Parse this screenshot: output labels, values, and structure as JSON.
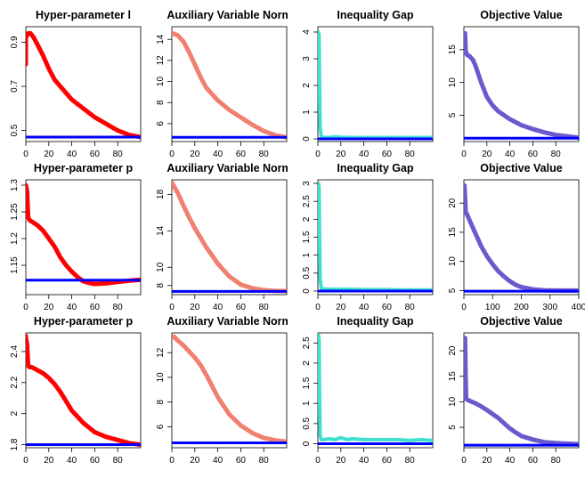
{
  "figure": {
    "background": "#ffffff",
    "title_clip_width": 131
  },
  "chart_data": [
    {
      "type": "line",
      "title": "Hyper-parameter l",
      "xlim": [
        0,
        100
      ],
      "ylim": [
        0.45,
        0.97
      ],
      "xticks": [
        0,
        20,
        40,
        60,
        80
      ],
      "yticks": [
        0.5,
        0.7,
        0.9
      ],
      "series": [
        {
          "color": "#ff0000",
          "width": 5,
          "x": [
            0,
            0,
            2,
            4,
            7,
            10,
            15,
            20,
            25,
            30,
            40,
            50,
            60,
            70,
            80,
            90,
            100
          ],
          "y": [
            0.8,
            0.92,
            0.94,
            0.94,
            0.92,
            0.89,
            0.84,
            0.78,
            0.73,
            0.7,
            0.64,
            0.6,
            0.56,
            0.53,
            0.5,
            0.48,
            0.47
          ]
        },
        {
          "color": "#0000ff",
          "width": 3,
          "x": [
            0,
            100
          ],
          "y": [
            0.47,
            0.47
          ]
        }
      ]
    },
    {
      "type": "line",
      "title": "Auxiliary Variable Norm",
      "xlim": [
        0,
        100
      ],
      "ylim": [
        4.3,
        15.2
      ],
      "xticks": [
        0,
        20,
        40,
        60,
        80
      ],
      "yticks": [
        6,
        8,
        10,
        12,
        14
      ],
      "series": [
        {
          "color": "#f08070",
          "width": 5,
          "x": [
            0,
            5,
            10,
            15,
            20,
            25,
            30,
            40,
            50,
            60,
            70,
            80,
            90,
            100
          ],
          "y": [
            14.6,
            14.4,
            13.8,
            12.8,
            11.6,
            10.4,
            9.4,
            8.2,
            7.3,
            6.6,
            5.9,
            5.3,
            4.9,
            4.7
          ]
        },
        {
          "color": "#0000ff",
          "width": 3,
          "x": [
            0,
            100
          ],
          "y": [
            4.7,
            4.7
          ]
        }
      ]
    },
    {
      "type": "line",
      "title": "Inequality Gap",
      "xlim": [
        0,
        100
      ],
      "ylim": [
        -0.1,
        4.2
      ],
      "xticks": [
        0,
        20,
        40,
        60,
        80
      ],
      "yticks": [
        0,
        1,
        2,
        3,
        4
      ],
      "series": [
        {
          "color": "#40e0d0",
          "width": 4,
          "x": [
            0,
            0.5,
            1,
            1.5,
            2,
            3,
            5,
            10,
            15,
            20,
            30,
            40,
            50,
            60,
            70,
            80,
            90,
            100
          ],
          "y": [
            4.0,
            4.0,
            3.9,
            2.0,
            0.4,
            0.08,
            0.05,
            0.05,
            0.08,
            0.06,
            0.05,
            0.05,
            0.05,
            0.05,
            0.05,
            0.05,
            0.05,
            0.05
          ]
        },
        {
          "color": "#0000ff",
          "width": 3,
          "x": [
            0,
            100
          ],
          "y": [
            0,
            0
          ]
        }
      ]
    },
    {
      "type": "line",
      "title": "Objective Value",
      "xlim": [
        0,
        100
      ],
      "ylim": [
        1,
        18.5
      ],
      "xticks": [
        0,
        20,
        40,
        60,
        80
      ],
      "yticks": [
        5,
        10,
        15
      ],
      "series": [
        {
          "color": "#6a5acd",
          "width": 5,
          "x": [
            0,
            0.5,
            1,
            1.5,
            2,
            3,
            5,
            8,
            10,
            15,
            20,
            25,
            30,
            40,
            50,
            60,
            70,
            80,
            90,
            100
          ],
          "y": [
            14.5,
            17.5,
            17.5,
            15,
            14.4,
            14.2,
            14.0,
            13.4,
            12.6,
            10.0,
            7.8,
            6.5,
            5.6,
            4.4,
            3.5,
            2.9,
            2.4,
            2.0,
            1.8,
            1.6
          ]
        },
        {
          "color": "#0000ff",
          "width": 3,
          "x": [
            0,
            100
          ],
          "y": [
            1.5,
            1.5
          ]
        }
      ]
    },
    {
      "type": "line",
      "title": "Hyper-parameter p",
      "xlim": [
        0,
        100
      ],
      "ylim": [
        1.095,
        1.31
      ],
      "xticks": [
        0,
        20,
        40,
        60,
        80
      ],
      "yticks": [
        1.15,
        1.2,
        1.25,
        1.3
      ],
      "series": [
        {
          "color": "#ff0000",
          "width": 5,
          "x": [
            0,
            0,
            1,
            2,
            3,
            5,
            10,
            15,
            20,
            25,
            30,
            35,
            40,
            45,
            50,
            55,
            60,
            70,
            80,
            90,
            100
          ],
          "y": [
            1.3,
            1.3,
            1.29,
            1.24,
            1.235,
            1.232,
            1.225,
            1.215,
            1.2,
            1.185,
            1.165,
            1.15,
            1.138,
            1.128,
            1.12,
            1.117,
            1.115,
            1.116,
            1.119,
            1.121,
            1.123
          ]
        },
        {
          "color": "#0000ff",
          "width": 3,
          "x": [
            0,
            100
          ],
          "y": [
            1.122,
            1.122
          ]
        }
      ]
    },
    {
      "type": "line",
      "title": "Auxiliary Variable Norm",
      "xlim": [
        0,
        100
      ],
      "ylim": [
        7,
        19.6
      ],
      "xticks": [
        0,
        20,
        40,
        60,
        80
      ],
      "yticks": [
        8,
        10,
        14,
        18
      ],
      "series": [
        {
          "color": "#f08070",
          "width": 5,
          "x": [
            0,
            5,
            10,
            15,
            20,
            30,
            40,
            50,
            60,
            70,
            80,
            90,
            100
          ],
          "y": [
            19.3,
            18.2,
            16.8,
            15.5,
            14.3,
            12.2,
            10.4,
            9.0,
            8.1,
            7.7,
            7.5,
            7.4,
            7.4
          ]
        },
        {
          "color": "#0000ff",
          "width": 3,
          "x": [
            0,
            100
          ],
          "y": [
            7.35,
            7.35
          ]
        }
      ]
    },
    {
      "type": "line",
      "title": "Inequality Gap",
      "xlim": [
        0,
        100
      ],
      "ylim": [
        -0.1,
        3.1
      ],
      "xticks": [
        0,
        20,
        40,
        60,
        80
      ],
      "yticks": [
        0,
        0.5,
        1,
        1.5,
        2,
        2.5,
        3
      ],
      "series": [
        {
          "color": "#40e0d0",
          "width": 4,
          "x": [
            0,
            0.5,
            1,
            1.5,
            2,
            3,
            5,
            10,
            20,
            30,
            40,
            50,
            60,
            70,
            80,
            90,
            100
          ],
          "y": [
            3.0,
            3.0,
            2.9,
            1.5,
            0.3,
            0.08,
            0.06,
            0.05,
            0.05,
            0.05,
            0.04,
            0.04,
            0.04,
            0.03,
            0.03,
            0.03,
            0.03
          ]
        },
        {
          "color": "#0000ff",
          "width": 3,
          "x": [
            0,
            100
          ],
          "y": [
            0,
            0
          ]
        }
      ]
    },
    {
      "type": "line",
      "title": "Objective Value",
      "xlim": [
        0,
        400
      ],
      "ylim": [
        4.3,
        24
      ],
      "xticks": [
        0,
        100,
        200,
        300,
        400
      ],
      "yticks": [
        5,
        10,
        15,
        20
      ],
      "series": [
        {
          "color": "#6a5acd",
          "width": 5,
          "x": [
            0,
            2,
            4,
            6,
            10,
            20,
            40,
            60,
            80,
            100,
            120,
            140,
            160,
            180,
            200,
            240,
            280,
            320,
            360,
            400
          ],
          "y": [
            20,
            23,
            21,
            18.5,
            18.2,
            17,
            14.8,
            12.6,
            10.9,
            9.5,
            8.3,
            7.4,
            6.6,
            6.0,
            5.6,
            5.2,
            5.05,
            5.0,
            5.0,
            5.0
          ]
        },
        {
          "color": "#0000ff",
          "width": 3,
          "x": [
            0,
            400
          ],
          "y": [
            4.9,
            4.9
          ]
        }
      ]
    },
    {
      "type": "line",
      "title": "Hyper-parameter p",
      "xlim": [
        0,
        100
      ],
      "ylim": [
        1.78,
        2.52
      ],
      "xticks": [
        0,
        20,
        40,
        60,
        80
      ],
      "yticks": [
        1.8,
        2,
        2.2,
        2.4
      ],
      "series": [
        {
          "color": "#ff0000",
          "width": 5,
          "x": [
            0,
            0,
            1,
            2,
            3,
            5,
            10,
            15,
            20,
            25,
            30,
            35,
            40,
            45,
            50,
            55,
            60,
            70,
            80,
            90,
            100
          ],
          "y": [
            2.5,
            2.49,
            2.45,
            2.31,
            2.3,
            2.3,
            2.28,
            2.26,
            2.23,
            2.19,
            2.14,
            2.08,
            2.02,
            1.98,
            1.94,
            1.91,
            1.88,
            1.85,
            1.83,
            1.81,
            1.8
          ]
        },
        {
          "color": "#0000ff",
          "width": 3,
          "x": [
            0,
            100
          ],
          "y": [
            1.8,
            1.8
          ]
        }
      ]
    },
    {
      "type": "line",
      "title": "Auxiliary Variable Norm",
      "xlim": [
        0,
        100
      ],
      "ylim": [
        4.3,
        13.6
      ],
      "xticks": [
        0,
        20,
        40,
        60,
        80
      ],
      "yticks": [
        6,
        8,
        10,
        12
      ],
      "series": [
        {
          "color": "#f08070",
          "width": 5,
          "x": [
            0,
            2,
            5,
            10,
            15,
            20,
            25,
            30,
            35,
            40,
            50,
            60,
            70,
            80,
            90,
            100
          ],
          "y": [
            13.2,
            13.3,
            13.0,
            12.6,
            12.1,
            11.6,
            11.0,
            10.2,
            9.3,
            8.4,
            7.0,
            6.1,
            5.5,
            5.1,
            4.9,
            4.8
          ]
        },
        {
          "color": "#0000ff",
          "width": 3,
          "x": [
            0,
            100
          ],
          "y": [
            4.7,
            4.7
          ]
        }
      ]
    },
    {
      "type": "line",
      "title": "Inequality Gap",
      "xlim": [
        0,
        100
      ],
      "ylim": [
        -0.1,
        2.75
      ],
      "xticks": [
        0,
        20,
        40,
        60,
        80
      ],
      "yticks": [
        0,
        0.5,
        1,
        1.5,
        2,
        2.5
      ],
      "series": [
        {
          "color": "#40e0d0",
          "width": 4,
          "x": [
            0,
            0.5,
            1,
            1.5,
            2,
            3,
            5,
            10,
            15,
            20,
            25,
            30,
            40,
            50,
            60,
            70,
            80,
            90,
            100
          ],
          "y": [
            2.7,
            2.7,
            2.6,
            1.2,
            0.2,
            0.1,
            0.1,
            0.12,
            0.1,
            0.15,
            0.1,
            0.12,
            0.1,
            0.1,
            0.1,
            0.1,
            0.08,
            0.1,
            0.08
          ]
        },
        {
          "color": "#0000ff",
          "width": 3,
          "x": [
            0,
            100
          ],
          "y": [
            0,
            0
          ]
        }
      ]
    },
    {
      "type": "line",
      "title": "Objective Value",
      "xlim": [
        0,
        100
      ],
      "ylim": [
        1,
        23.5
      ],
      "xticks": [
        0,
        20,
        40,
        60,
        80
      ],
      "yticks": [
        5,
        10,
        15,
        20
      ],
      "series": [
        {
          "color": "#6a5acd",
          "width": 5,
          "x": [
            0,
            0.5,
            1,
            1.5,
            2,
            3,
            5,
            10,
            15,
            20,
            25,
            30,
            35,
            40,
            45,
            50,
            60,
            70,
            80,
            90,
            100
          ],
          "y": [
            10.5,
            22.5,
            22.5,
            15,
            10.6,
            10.4,
            10.2,
            9.7,
            9.1,
            8.4,
            7.6,
            6.8,
            5.8,
            4.8,
            4.0,
            3.3,
            2.6,
            2.1,
            1.9,
            1.8,
            1.7
          ]
        },
        {
          "color": "#0000ff",
          "width": 3,
          "x": [
            0,
            100
          ],
          "y": [
            1.5,
            1.5
          ]
        }
      ]
    }
  ]
}
